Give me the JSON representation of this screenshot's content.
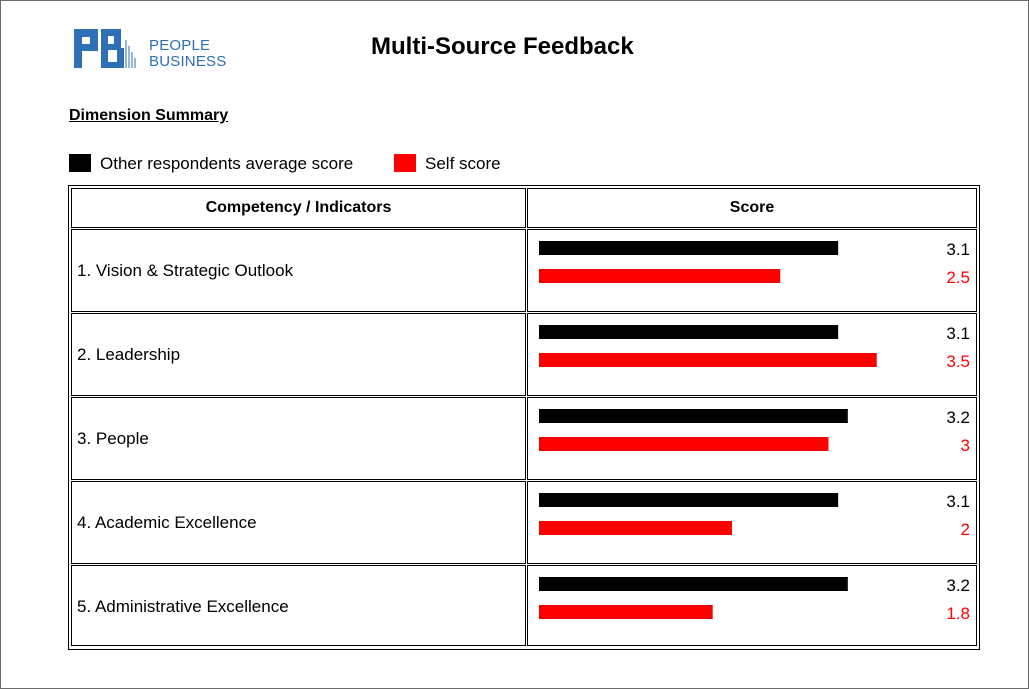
{
  "header": {
    "logo_line1": "PEOPLE",
    "logo_line2": "BUSINESS",
    "title": "Multi-Source Feedback"
  },
  "section": {
    "title": "Dimension Summary"
  },
  "legend": [
    {
      "label": "Other respondents average score",
      "color": "#000000"
    },
    {
      "label": "Self score",
      "color": "#ff0000"
    }
  ],
  "table": {
    "headers": [
      "Competency / Indicators",
      "Score"
    ]
  },
  "chart_data": {
    "type": "bar",
    "orientation": "horizontal",
    "categories": [
      "1. Vision & Strategic Outlook",
      "2. Leadership",
      "3. People",
      "4. Academic Excellence",
      "5. Administrative Excellence"
    ],
    "series": [
      {
        "name": "Other respondents average score",
        "color": "#000000",
        "values": [
          3.1,
          3.1,
          3.2,
          3.1,
          3.2
        ]
      },
      {
        "name": "Self score",
        "color": "#ff0000",
        "values": [
          2.5,
          3.5,
          3.0,
          2.0,
          1.8
        ]
      }
    ],
    "value_labels": [
      [
        "3.1",
        "3.1",
        "3.2",
        "3.1",
        "3.2"
      ],
      [
        "2.5",
        "3.5",
        "3",
        "2",
        "1.8"
      ]
    ],
    "xlim": [
      0,
      4.5
    ],
    "grid": false,
    "legend_position": "top-left"
  }
}
